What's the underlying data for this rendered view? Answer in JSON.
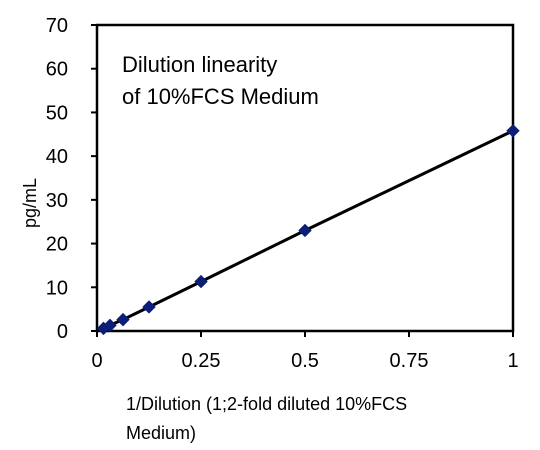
{
  "chart_data": {
    "type": "scatter",
    "title": "",
    "annotation_lines": [
      "Dilution linearity",
      "of 10%FCS Medium"
    ],
    "xlabel_lines": [
      "1/Dilution (1;2-fold diluted 10%FCS",
      "Medium)"
    ],
    "ylabel": "pg/mL",
    "xlim": [
      0,
      1
    ],
    "ylim": [
      0,
      70
    ],
    "x_ticks": [
      0,
      0.25,
      0.5,
      0.75,
      1
    ],
    "x_tick_labels": [
      "0",
      "0.25",
      "0.5",
      "0.75",
      "1"
    ],
    "y_ticks": [
      0,
      10,
      20,
      30,
      40,
      50,
      60,
      70
    ],
    "y_tick_labels": [
      "0",
      "10",
      "20",
      "30",
      "40",
      "50",
      "60",
      "70"
    ],
    "grid": false,
    "series": [
      {
        "marker": "diamond",
        "color": "#0b1f78",
        "line_color": "#000000",
        "points": [
          {
            "x": 0.0156,
            "y": 0.6
          },
          {
            "x": 0.03125,
            "y": 1.3
          },
          {
            "x": 0.0625,
            "y": 2.6
          },
          {
            "x": 0.125,
            "y": 5.5
          },
          {
            "x": 0.25,
            "y": 11.3
          },
          {
            "x": 0.5,
            "y": 23.0
          },
          {
            "x": 1,
            "y": 45.8
          }
        ]
      }
    ]
  }
}
